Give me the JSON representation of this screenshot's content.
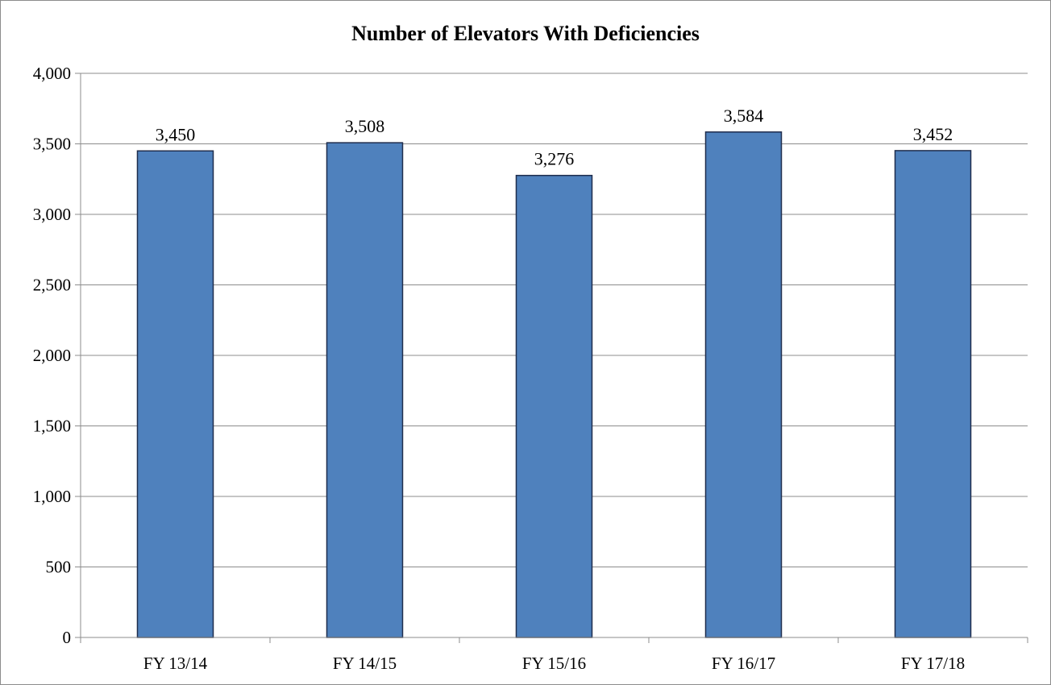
{
  "chart_data": {
    "type": "bar",
    "title": "Number of Elevators With Deficiencies",
    "xlabel": "",
    "ylabel": "",
    "categories": [
      "FY 13/14",
      "FY 14/15",
      "FY 15/16",
      "FY 16/17",
      "FY 17/18"
    ],
    "values": [
      3450,
      3508,
      3276,
      3584,
      3452
    ],
    "data_labels": [
      "3,450",
      "3,508",
      "3,276",
      "3,584",
      "3,452"
    ],
    "ylim": [
      0,
      4000
    ],
    "y_ticks": [
      0,
      500,
      1000,
      1500,
      2000,
      2500,
      3000,
      3500,
      4000
    ],
    "y_tick_labels": [
      "0",
      "500",
      "1,000",
      "1,500",
      "2,000",
      "2,500",
      "3,000",
      "3,500",
      "4,000"
    ],
    "grid": true,
    "legend": "none",
    "colors": {
      "bar_fill": "#4f81bd",
      "bar_stroke": "#1f2d4d",
      "grid": "#8c8c8c"
    }
  }
}
